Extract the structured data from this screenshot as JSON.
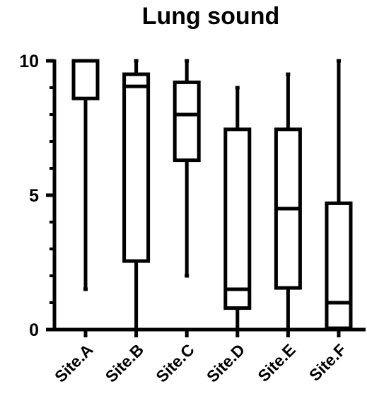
{
  "chart_data": {
    "type": "box",
    "title": "Lung sound",
    "xlabel": "",
    "ylabel": "",
    "ylim": [
      0,
      10
    ],
    "y_ticks": [
      {
        "value": 0,
        "label": "0"
      },
      {
        "value": 5,
        "label": "5"
      },
      {
        "value": 10,
        "label": "10"
      }
    ],
    "y_minor_ticks": [
      1,
      2,
      3,
      4,
      6,
      7,
      8,
      9
    ],
    "grid": false,
    "legend": "none",
    "color": "#000000",
    "categories": [
      "Site.A",
      "Site.B",
      "Site.C",
      "Site.D",
      "Site.E",
      "Site.F"
    ],
    "boxes": [
      {
        "category": "Site.A",
        "min": 1.5,
        "q1": 8.6,
        "median": 10,
        "q3": 10,
        "max": 10
      },
      {
        "category": "Site.B",
        "min": 0,
        "q1": 2.55,
        "median": 9.05,
        "q3": 9.5,
        "max": 10
      },
      {
        "category": "Site.C",
        "min": 2.0,
        "q1": 6.3,
        "median": 8.0,
        "q3": 9.2,
        "max": 10
      },
      {
        "category": "Site.D",
        "min": 0,
        "q1": 0.8,
        "median": 1.5,
        "q3": 7.45,
        "max": 9.0
      },
      {
        "category": "Site.E",
        "min": 0,
        "q1": 1.55,
        "median": 4.5,
        "q3": 7.45,
        "max": 9.5
      },
      {
        "category": "Site.F",
        "min": 0,
        "q1": 0.05,
        "median": 1.0,
        "q3": 4.7,
        "max": 10
      }
    ]
  }
}
